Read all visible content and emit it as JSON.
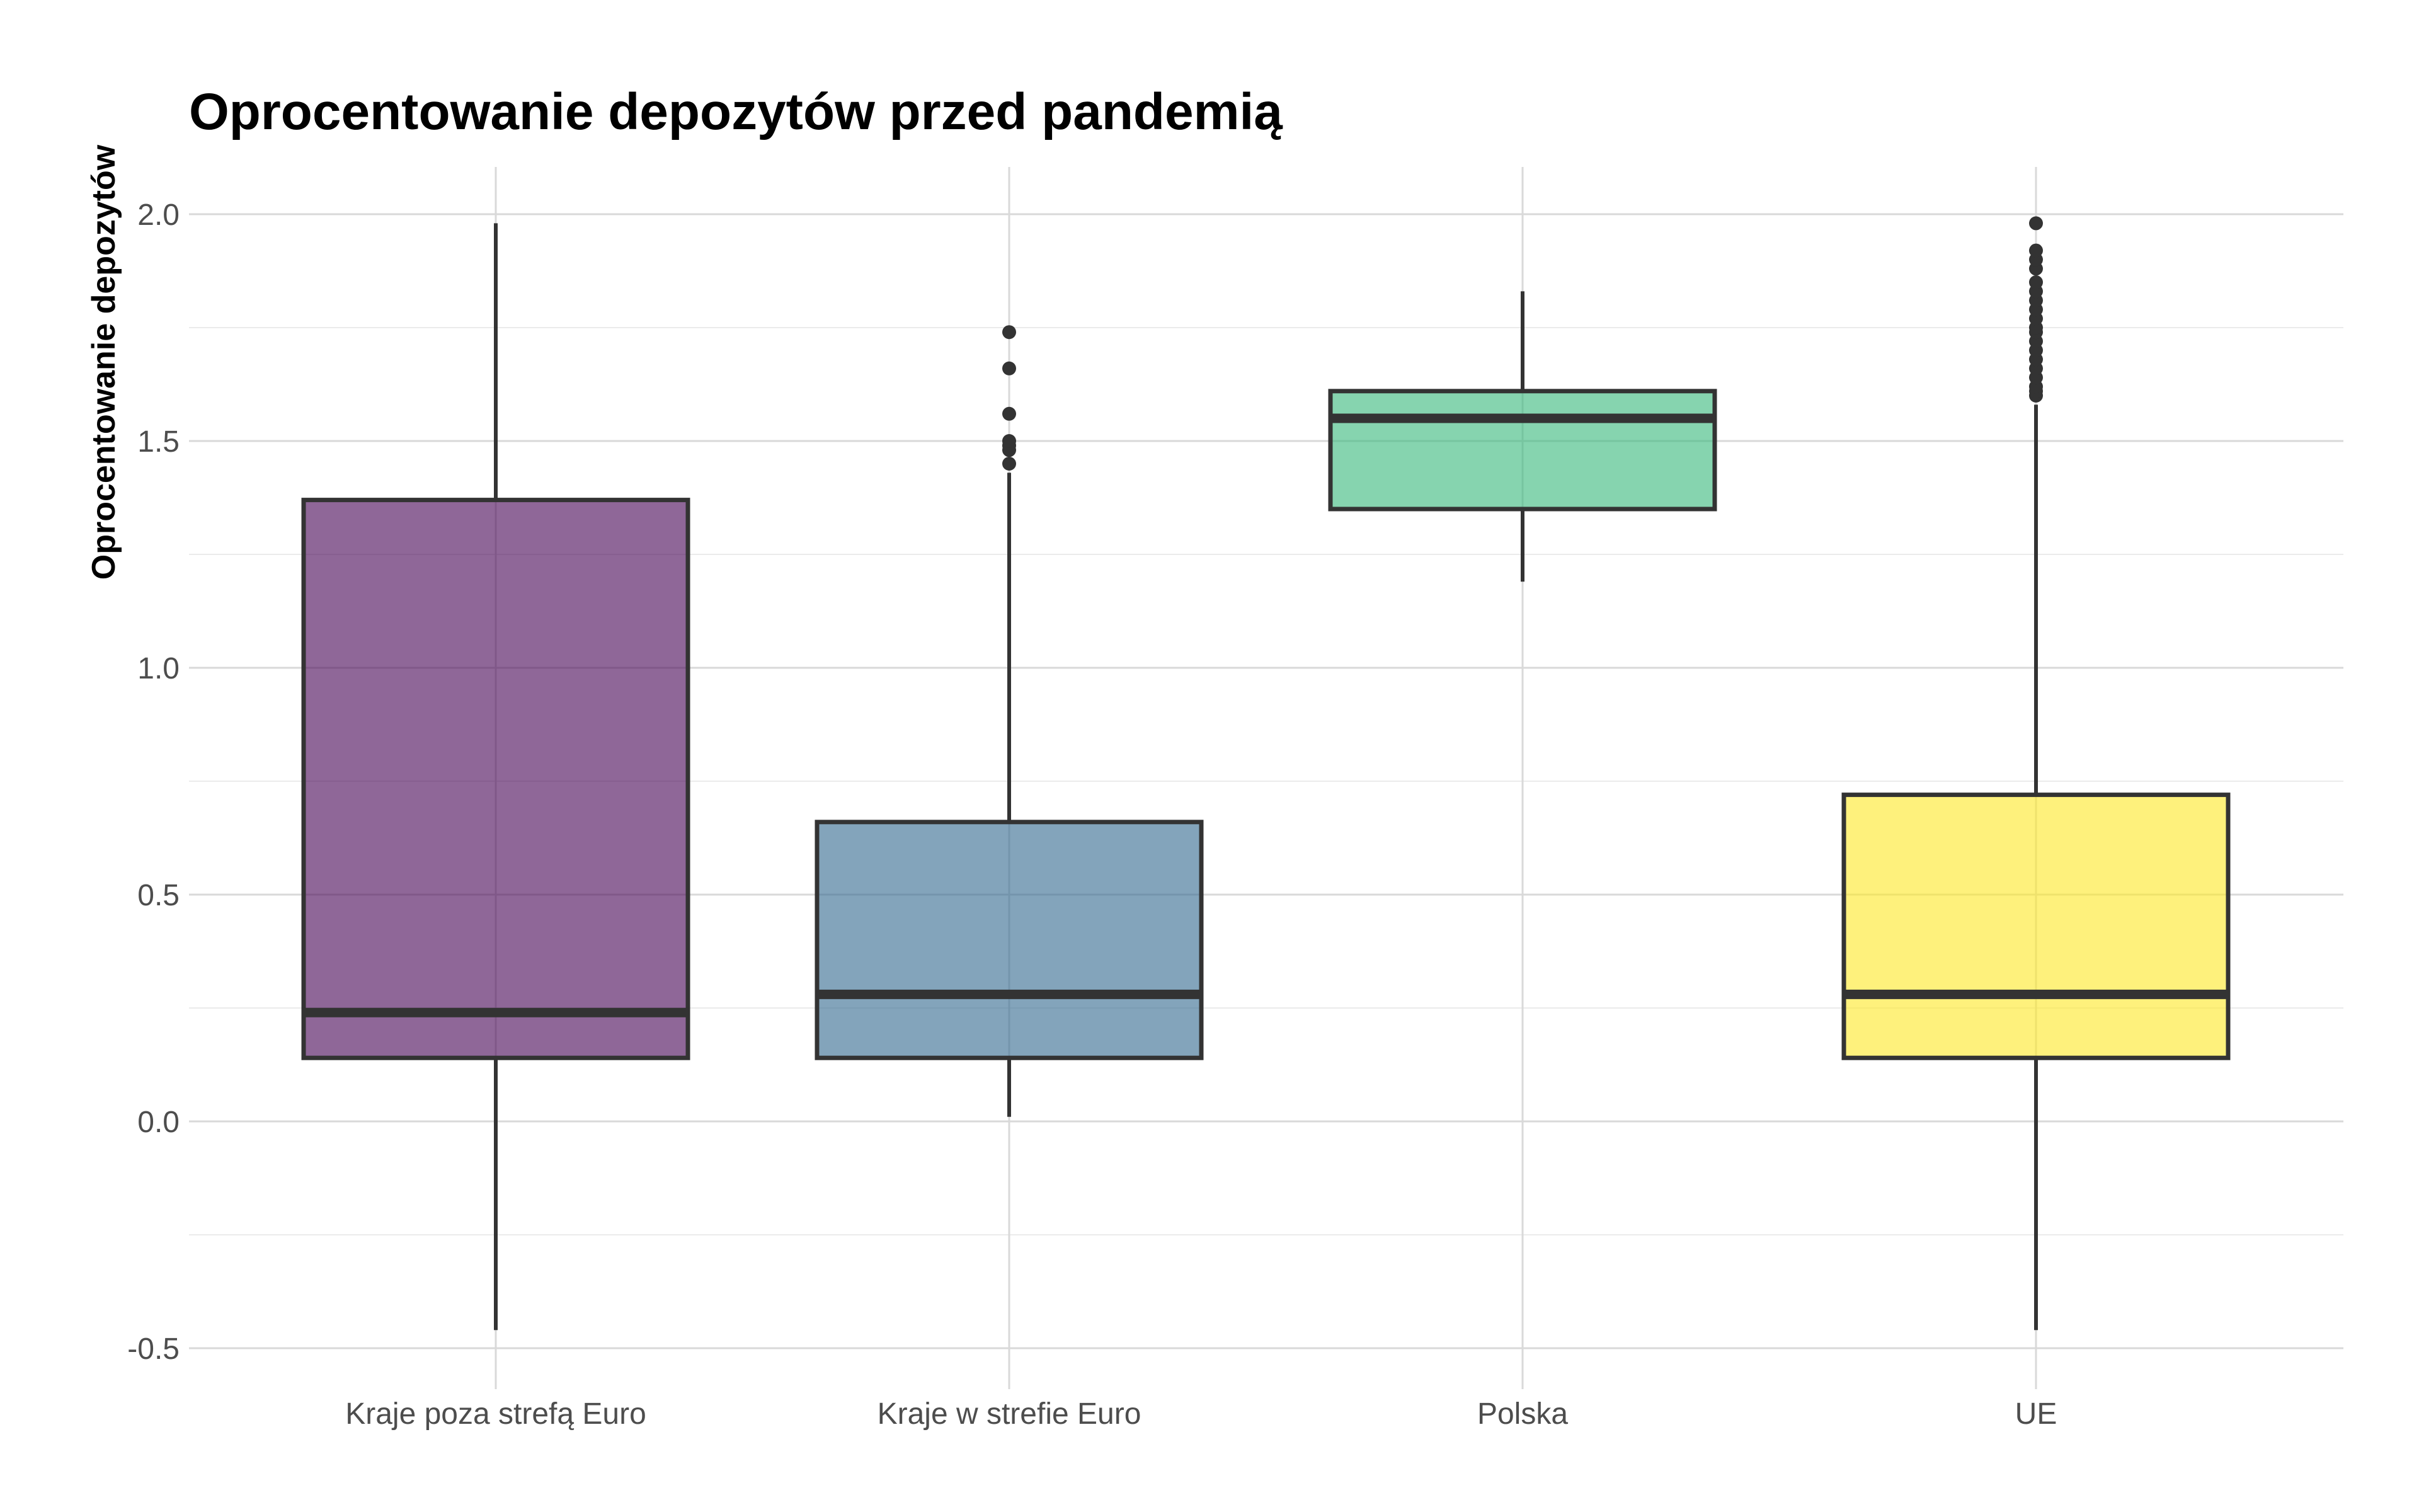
{
  "chart_data": {
    "type": "boxplot",
    "title": "Oprocentowanie depozytów przed pandemią",
    "xlabel": "",
    "ylabel": "Oprocentowanie depozytów",
    "ylim": [
      -0.5,
      2.1
    ],
    "yticks": [
      "-0.5",
      "0.0",
      "0.5",
      "1.0",
      "1.5",
      "2.0"
    ],
    "grid": true,
    "legend": "none",
    "categories": [
      "Kraje poza strefą Euro",
      "Kraje w strefie Euro",
      "Polska",
      "UE"
    ],
    "boxes": [
      {
        "category": "Kraje poza strefą Euro",
        "color": "#440154",
        "min": -0.46,
        "q1": 0.14,
        "median": 0.24,
        "q3": 1.37,
        "max": 1.98,
        "outliers": []
      },
      {
        "category": "Kraje w strefie Euro",
        "color": "#31688e",
        "min": 0.01,
        "q1": 0.14,
        "median": 0.28,
        "q3": 0.66,
        "max": 1.43,
        "outliers": [
          1.45,
          1.48,
          1.49,
          1.5,
          1.56,
          1.66,
          1.74
        ]
      },
      {
        "category": "Polska",
        "color": "#35b779",
        "min": 1.19,
        "q1": 1.35,
        "median": 1.55,
        "q3": 1.61,
        "max": 1.83,
        "outliers": []
      },
      {
        "category": "UE",
        "color": "#fde725",
        "min": -0.46,
        "q1": 0.14,
        "median": 0.28,
        "q3": 0.72,
        "max": 1.58,
        "outliers": [
          1.6,
          1.61,
          1.62,
          1.64,
          1.66,
          1.68,
          1.7,
          1.72,
          1.74,
          1.75,
          1.77,
          1.79,
          1.81,
          1.83,
          1.85,
          1.88,
          1.9,
          1.92,
          1.98
        ]
      }
    ]
  }
}
